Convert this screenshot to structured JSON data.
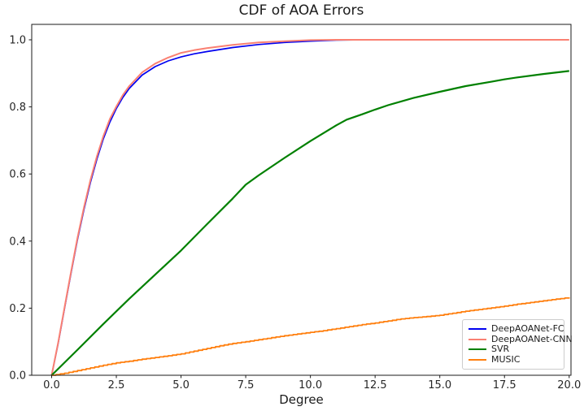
{
  "chart_data": {
    "type": "line",
    "title": "CDF of AOA Errors",
    "xlabel": "Degree",
    "ylabel": "",
    "xlim": [
      -0.77,
      20.07
    ],
    "ylim": [
      0,
      1.046
    ],
    "grid": false,
    "legend_position": "lower right",
    "x_ticks": [
      0.0,
      2.5,
      5.0,
      7.5,
      10.0,
      12.5,
      15.0,
      17.5,
      20.0
    ],
    "x_tick_labels": [
      "0.0",
      "2.5",
      "5.0",
      "7.5",
      "10.0",
      "12.5",
      "15.0",
      "17.5",
      "20.0"
    ],
    "y_ticks": [
      0.0,
      0.2,
      0.4,
      0.6,
      0.8,
      1.0
    ],
    "y_tick_labels": [
      "0.0",
      "0.2",
      "0.4",
      "0.6",
      "0.8",
      "1.0"
    ],
    "series": [
      {
        "name": "DeepAOANet-FC",
        "color": "#0000f0",
        "width": 1.7,
        "style": "line",
        "points": [
          [
            0,
            0
          ],
          [
            0.25,
            0.095
          ],
          [
            0.5,
            0.2
          ],
          [
            0.75,
            0.305
          ],
          [
            1,
            0.405
          ],
          [
            1.25,
            0.495
          ],
          [
            1.5,
            0.575
          ],
          [
            1.75,
            0.645
          ],
          [
            2,
            0.705
          ],
          [
            2.25,
            0.755
          ],
          [
            2.5,
            0.795
          ],
          [
            2.75,
            0.828
          ],
          [
            3,
            0.855
          ],
          [
            3.5,
            0.895
          ],
          [
            4,
            0.92
          ],
          [
            4.5,
            0.937
          ],
          [
            5,
            0.949
          ],
          [
            5.5,
            0.958
          ],
          [
            6,
            0.965
          ],
          [
            7,
            0.977
          ],
          [
            8,
            0.986
          ],
          [
            9,
            0.992
          ],
          [
            10,
            0.996
          ],
          [
            11,
            0.999
          ],
          [
            12,
            1.0
          ],
          [
            17.45,
            1.0
          ]
        ]
      },
      {
        "name": "DeepAOANet-CNN",
        "color": "#fa8072",
        "width": 2.0,
        "style": "line",
        "points": [
          [
            0,
            0
          ],
          [
            0.25,
            0.097
          ],
          [
            0.5,
            0.203
          ],
          [
            0.75,
            0.309
          ],
          [
            1,
            0.41
          ],
          [
            1.25,
            0.501
          ],
          [
            1.5,
            0.582
          ],
          [
            1.75,
            0.653
          ],
          [
            2,
            0.713
          ],
          [
            2.25,
            0.764
          ],
          [
            2.5,
            0.801
          ],
          [
            2.75,
            0.835
          ],
          [
            3,
            0.862
          ],
          [
            3.5,
            0.903
          ],
          [
            4,
            0.929
          ],
          [
            4.5,
            0.947
          ],
          [
            5,
            0.961
          ],
          [
            5.5,
            0.969
          ],
          [
            6,
            0.975
          ],
          [
            7,
            0.985
          ],
          [
            8,
            0.992
          ],
          [
            9,
            0.996
          ],
          [
            10,
            0.999
          ],
          [
            11,
            1.0
          ],
          [
            20,
            1.0
          ]
        ]
      },
      {
        "name": "SVR",
        "color": "#008000",
        "width": 2.2,
        "style": "line",
        "points": [
          [
            0,
            0
          ],
          [
            1,
            0.076
          ],
          [
            2,
            0.153
          ],
          [
            3,
            0.228
          ],
          [
            4,
            0.3
          ],
          [
            5,
            0.372
          ],
          [
            6,
            0.45
          ],
          [
            7,
            0.527
          ],
          [
            7.5,
            0.568
          ],
          [
            8,
            0.596
          ],
          [
            9,
            0.648
          ],
          [
            10,
            0.698
          ],
          [
            11,
            0.745
          ],
          [
            11.4,
            0.762
          ],
          [
            12,
            0.778
          ],
          [
            12.5,
            0.792
          ],
          [
            13,
            0.805
          ],
          [
            14,
            0.827
          ],
          [
            15,
            0.845
          ],
          [
            16,
            0.862
          ],
          [
            17,
            0.875
          ],
          [
            17.5,
            0.882
          ],
          [
            18,
            0.888
          ],
          [
            19,
            0.898
          ],
          [
            20,
            0.907
          ]
        ]
      },
      {
        "name": "MUSIC",
        "color": "#ff7f0e",
        "width": 1.8,
        "style": "step",
        "points": [
          [
            0,
            0
          ],
          [
            0.5,
            0.006
          ],
          [
            1,
            0.014
          ],
          [
            1.5,
            0.022
          ],
          [
            2,
            0.03
          ],
          [
            2.5,
            0.037
          ],
          [
            3,
            0.042
          ],
          [
            3.5,
            0.048
          ],
          [
            4,
            0.053
          ],
          [
            4.5,
            0.058
          ],
          [
            5,
            0.064
          ],
          [
            5.5,
            0.072
          ],
          [
            6,
            0.08
          ],
          [
            6.5,
            0.088
          ],
          [
            7,
            0.095
          ],
          [
            7.5,
            0.1
          ],
          [
            8,
            0.106
          ],
          [
            8.5,
            0.112
          ],
          [
            9,
            0.118
          ],
          [
            9.5,
            0.123
          ],
          [
            10,
            0.128
          ],
          [
            10.5,
            0.133
          ],
          [
            11,
            0.139
          ],
          [
            11.5,
            0.145
          ],
          [
            12,
            0.151
          ],
          [
            12.5,
            0.156
          ],
          [
            13,
            0.162
          ],
          [
            13.5,
            0.168
          ],
          [
            14,
            0.172
          ],
          [
            14.5,
            0.175
          ],
          [
            15,
            0.179
          ],
          [
            15.5,
            0.185
          ],
          [
            16,
            0.191
          ],
          [
            16.5,
            0.196
          ],
          [
            17,
            0.201
          ],
          [
            17.5,
            0.206
          ],
          [
            18,
            0.212
          ],
          [
            18.5,
            0.217
          ],
          [
            19,
            0.222
          ],
          [
            19.5,
            0.227
          ],
          [
            20,
            0.232
          ]
        ]
      }
    ]
  }
}
